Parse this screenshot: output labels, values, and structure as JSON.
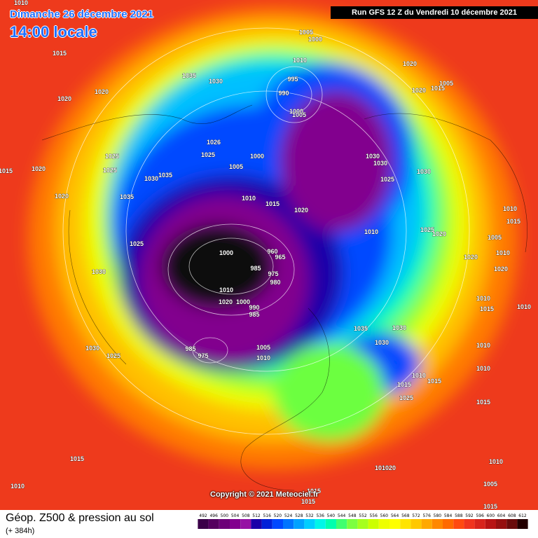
{
  "header": {
    "date": "Dimanche 26 décembre 2021",
    "time": "14:00 locale",
    "run": "Run GFS 12 Z du Vendredi 10 décembre 2021"
  },
  "footer": {
    "title": "Géop. Z500 & pression au sol",
    "lead": "(+ 384h)",
    "copyright": "Copyright © 2021 Meteociel.fr"
  },
  "legend": {
    "values": [
      492,
      496,
      500,
      504,
      508,
      512,
      516,
      520,
      524,
      528,
      532,
      536,
      540,
      544,
      548,
      552,
      556,
      560,
      564,
      568,
      572,
      576,
      580,
      584,
      588,
      592,
      596,
      600,
      604,
      608,
      612
    ],
    "colors": [
      "#3a0048",
      "#55005f",
      "#6c0078",
      "#82008e",
      "#9612a4",
      "#1a00a8",
      "#0020d8",
      "#0048ff",
      "#0074ff",
      "#00a2ff",
      "#00ceff",
      "#00f6e8",
      "#00ffae",
      "#40ff70",
      "#7cff40",
      "#a6ff1e",
      "#ccff00",
      "#eeff00",
      "#ffff00",
      "#ffe400",
      "#ffc800",
      "#ffa800",
      "#ff8800",
      "#ff6a00",
      "#ff4a10",
      "#f0341e",
      "#d8241c",
      "#b81414",
      "#961010",
      "#6a0c0c",
      "#240000"
    ]
  },
  "isobar_labels": [
    1010,
    1015,
    1020,
    1020,
    1035,
    1030,
    1005,
    1000,
    1010,
    1020,
    995,
    990,
    1000,
    1005,
    1020,
    1015,
    1005,
    1025,
    1026,
    1000,
    1005,
    1030,
    1030,
    1030,
    1025,
    1035,
    1030,
    1025,
    1025,
    1020,
    1015,
    1020,
    1035,
    1010,
    1015,
    1020,
    1010,
    1025,
    1020,
    1025,
    1000,
    960,
    965,
    985,
    975,
    980,
    1030,
    1010,
    1000,
    990,
    985,
    1020,
    1035,
    1030,
    1030,
    1005,
    1010,
    985,
    975,
    1030,
    1025,
    1010,
    1015,
    1015,
    1025,
    1010,
    1010,
    1015,
    1010,
    1015,
    1010,
    1010,
    1015,
    1005,
    1010,
    1020,
    1020,
    1015,
    1010,
    1010,
    1020,
    1010,
    1005,
    1015,
    1015,
    1015
  ]
}
